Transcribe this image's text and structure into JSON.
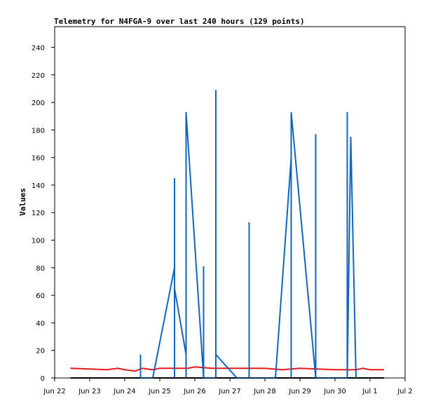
{
  "chart_data": {
    "type": "line",
    "title": "Telemetry for N4FGA-9 over last 240 hours (129 points)",
    "xlabel": "",
    "ylabel": "Values",
    "x_ticks": [
      "Jun 22",
      "Jun 23",
      "Jun 24",
      "Jun 25",
      "Jun 26",
      "Jun 27",
      "Jun 28",
      "Jun 29",
      "Jun 30",
      "Jul 1",
      "Jul 2"
    ],
    "xlim_days": [
      22,
      32
    ],
    "ylim": [
      0,
      255
    ],
    "y_ticks": [
      0,
      20,
      40,
      60,
      80,
      100,
      120,
      140,
      160,
      180,
      200,
      220,
      240
    ],
    "grid": false,
    "legend": "none",
    "series": [
      {
        "color": "#e8191a",
        "x": [
          22.45,
          23.0,
          23.5,
          23.8,
          24.0,
          24.3,
          24.5,
          24.8,
          25.0,
          25.5,
          25.8,
          26.0,
          26.5,
          27.0,
          27.5,
          28.0,
          28.5,
          29.0,
          29.5,
          30.0,
          30.3,
          30.6,
          30.8,
          31.0,
          31.4
        ],
        "values": [
          7,
          6.5,
          6,
          7,
          6,
          5,
          7,
          6,
          7,
          7,
          7,
          8,
          7,
          7,
          7,
          7,
          6,
          7,
          6.5,
          6,
          6,
          6,
          7,
          6,
          6
        ]
      },
      {
        "color": "#000000",
        "x": [
          22.45,
          31.4
        ],
        "values": [
          0,
          0
        ]
      },
      {
        "color": "#1166bb",
        "x": [
          24.45,
          24.45,
          24.45,
          24.8,
          25.42,
          25.42,
          25.42,
          25.42,
          25.42,
          25.42,
          25.75,
          25.75,
          25.75,
          25.75,
          26.25,
          26.25,
          26.25,
          26.25,
          26.25,
          26.6,
          26.6,
          26.6,
          26.6,
          26.6,
          26.6,
          27.2,
          27.55,
          27.55,
          27.55,
          28.3,
          28.75,
          28.75,
          28.75,
          28.75,
          29.45,
          29.45,
          29.45,
          30.35,
          30.35,
          30.35,
          30.35,
          30.45,
          30.6,
          30.6
        ],
        "values": [
          0,
          17,
          0,
          0,
          80,
          113,
          65,
          145,
          0,
          65,
          17,
          193,
          0,
          193,
          0,
          81,
          0,
          41,
          0,
          0,
          113,
          0,
          209,
          17,
          17,
          0,
          0,
          113,
          0,
          0,
          160,
          193,
          0,
          193,
          0,
          177,
          0,
          0,
          97,
          193,
          0,
          175,
          0,
          0
        ]
      }
    ]
  }
}
